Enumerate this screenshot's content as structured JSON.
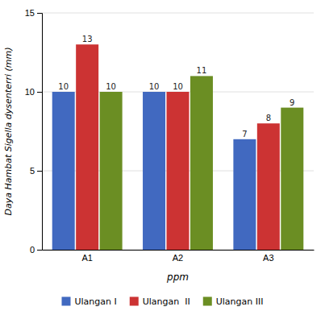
{
  "chart_data": {
    "type": "bar",
    "categories": [
      "A1",
      "A2",
      "A3"
    ],
    "series": [
      {
        "name": "Ulangan I",
        "color": "#4169C0",
        "values": [
          10,
          10,
          7
        ]
      },
      {
        "name": "Ulangan  II",
        "color": "#CC3333",
        "values": [
          13,
          10,
          8
        ]
      },
      {
        "name": "Ulangan III",
        "color": "#6B8E23",
        "values": [
          10,
          11,
          9
        ]
      }
    ],
    "xlabel": "ppm",
    "ylabel": "Daya Hambat Sigella dysenterri (mm)",
    "ylim": [
      0,
      15
    ],
    "yticks": [
      0,
      5,
      10,
      15
    ],
    "grid": true,
    "legend": "bottom",
    "data_labels": true
  }
}
